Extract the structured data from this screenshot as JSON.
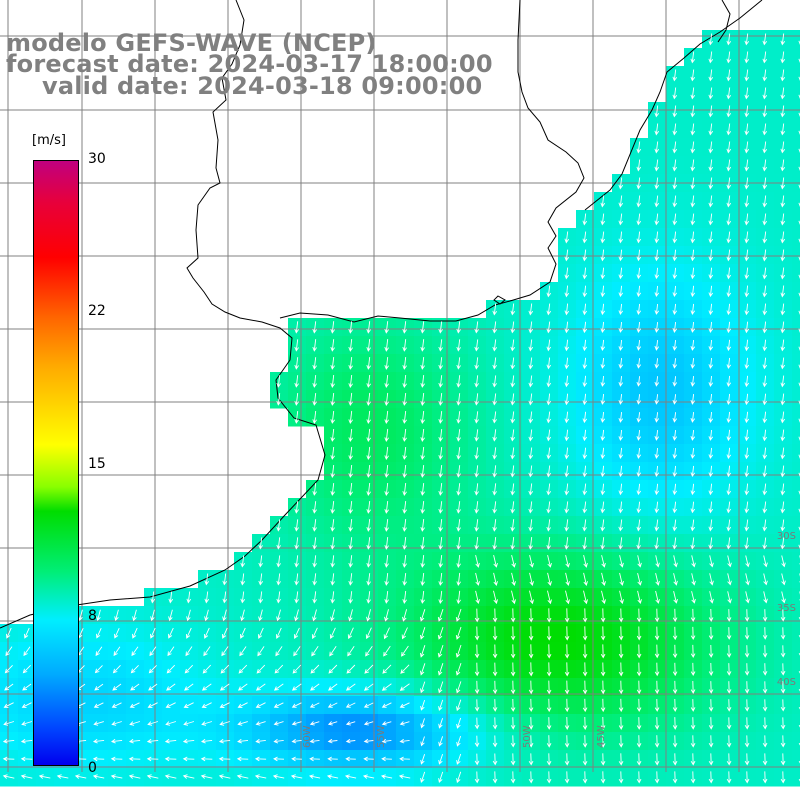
{
  "title": {
    "model": "modelo GEFS-WAVE (NCEP)",
    "forecast": "forecast date: 2024-03-17 18:00:00",
    "valid": "valid date: 2024-03-18 09:00:00"
  },
  "colorbar": {
    "unit": "[m/s]",
    "ticks": [
      "30",
      "22",
      "15",
      "8",
      "0"
    ],
    "tick_values": [
      30,
      22,
      15,
      8,
      0
    ],
    "range": [
      0,
      30
    ],
    "colors": [
      "#0000ee",
      "#0044ff",
      "#00aaff",
      "#00eeff",
      "#00ee77",
      "#00dd00",
      "#88ff00",
      "#ffff00",
      "#ffaa00",
      "#ff6600",
      "#ff0000",
      "#e8003a",
      "#c0007f"
    ]
  },
  "axes": {
    "lat_labels": [
      "30S",
      "35S",
      "40S"
    ],
    "lon_labels": [
      "60W",
      "55W",
      "50W",
      "45W"
    ]
  },
  "colors": {
    "land": "#ffffff",
    "coast": "#000000",
    "grid": "#808080",
    "arrow": "#ffffff"
  }
}
